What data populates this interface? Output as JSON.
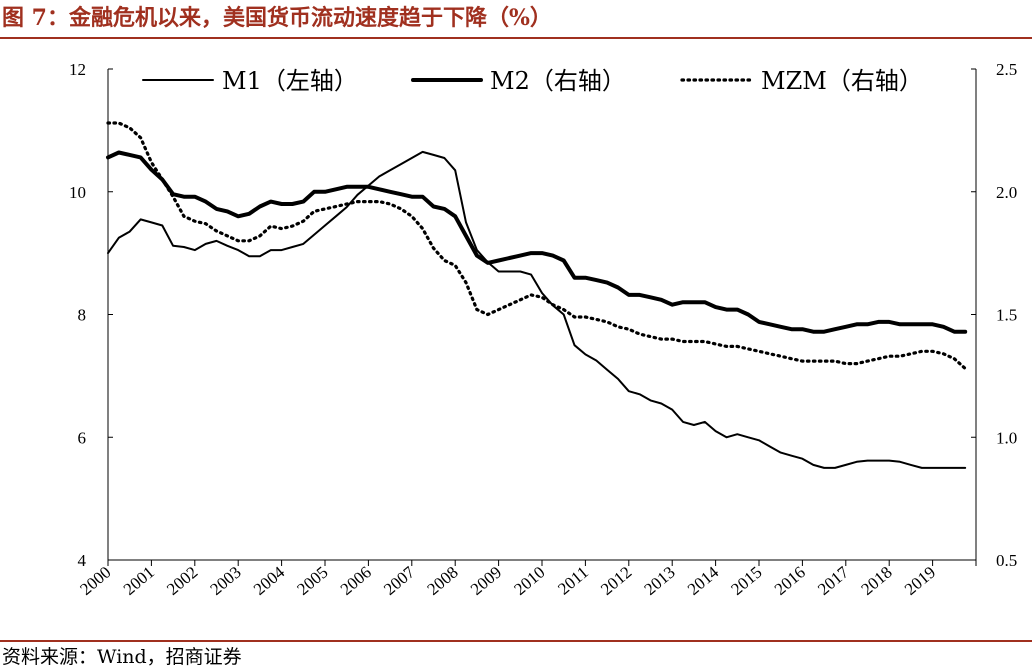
{
  "figure": {
    "title": "图 7：金融危机以来，美国货币流动速度趋于下降（%）",
    "source": "资料来源：Wind，招商证券"
  },
  "chart_data": {
    "type": "line",
    "x_range": [
      2000,
      2020
    ],
    "x_ticks": [
      "2000",
      "2001",
      "2002",
      "2003",
      "2004",
      "2005",
      "2006",
      "2007",
      "2008",
      "2009",
      "2010",
      "2011",
      "2012",
      "2013",
      "2014",
      "2015",
      "2016",
      "2017",
      "2018",
      "2019"
    ],
    "left_axis": {
      "ylim": [
        4,
        12
      ],
      "ticks": [
        "4",
        "6",
        "8",
        "10",
        "12"
      ]
    },
    "right_axis": {
      "ylim": [
        0.5,
        2.5
      ],
      "ticks": [
        "0.5",
        "1.0",
        "1.5",
        "2.0",
        "2.5"
      ]
    },
    "legend_placement": "top",
    "series": [
      {
        "name": "M1（左轴）",
        "axis": "left",
        "style": "thin",
        "color": "#000000",
        "x": [
          2000.0,
          2000.25,
          2000.5,
          2000.75,
          2001.0,
          2001.25,
          2001.5,
          2001.75,
          2002.0,
          2002.25,
          2002.5,
          2002.75,
          2003.0,
          2003.25,
          2003.5,
          2003.75,
          2004.0,
          2004.25,
          2004.5,
          2004.75,
          2005.0,
          2005.25,
          2005.5,
          2005.75,
          2006.0,
          2006.25,
          2006.5,
          2006.75,
          2007.0,
          2007.25,
          2007.5,
          2007.75,
          2008.0,
          2008.25,
          2008.5,
          2008.75,
          2009.0,
          2009.25,
          2009.5,
          2009.75,
          2010.0,
          2010.25,
          2010.5,
          2010.75,
          2011.0,
          2011.25,
          2011.5,
          2011.75,
          2012.0,
          2012.25,
          2012.5,
          2012.75,
          2013.0,
          2013.25,
          2013.5,
          2013.75,
          2014.0,
          2014.25,
          2014.5,
          2014.75,
          2015.0,
          2015.25,
          2015.5,
          2015.75,
          2016.0,
          2016.25,
          2016.5,
          2016.75,
          2017.0,
          2017.25,
          2017.5,
          2017.75,
          2018.0,
          2018.25,
          2018.5,
          2018.75,
          2019.0,
          2019.25,
          2019.5,
          2019.75
        ],
        "values": [
          9.0,
          9.25,
          9.35,
          9.55,
          9.5,
          9.45,
          9.12,
          9.1,
          9.05,
          9.15,
          9.2,
          9.12,
          9.05,
          8.95,
          8.95,
          9.05,
          9.05,
          9.1,
          9.15,
          9.3,
          9.45,
          9.6,
          9.75,
          9.95,
          10.1,
          10.25,
          10.35,
          10.45,
          10.55,
          10.65,
          10.6,
          10.55,
          10.35,
          9.5,
          9.05,
          8.85,
          8.7,
          8.7,
          8.7,
          8.65,
          8.35,
          8.15,
          8.0,
          7.5,
          7.35,
          7.25,
          7.1,
          6.95,
          6.75,
          6.7,
          6.6,
          6.55,
          6.45,
          6.25,
          6.2,
          6.25,
          6.1,
          6.0,
          6.05,
          6.0,
          5.95,
          5.85,
          5.75,
          5.7,
          5.65,
          5.55,
          5.5,
          5.5,
          5.55,
          5.6,
          5.62,
          5.62,
          5.62,
          5.6,
          5.55,
          5.5,
          5.5,
          5.5,
          5.5,
          5.5
        ]
      },
      {
        "name": "M2（右轴）",
        "axis": "right",
        "style": "thick",
        "color": "#000000",
        "x": [
          2000.0,
          2000.25,
          2000.5,
          2000.75,
          2001.0,
          2001.25,
          2001.5,
          2001.75,
          2002.0,
          2002.25,
          2002.5,
          2002.75,
          2003.0,
          2003.25,
          2003.5,
          2003.75,
          2004.0,
          2004.25,
          2004.5,
          2004.75,
          2005.0,
          2005.25,
          2005.5,
          2005.75,
          2006.0,
          2006.25,
          2006.5,
          2006.75,
          2007.0,
          2007.25,
          2007.5,
          2007.75,
          2008.0,
          2008.25,
          2008.5,
          2008.75,
          2009.0,
          2009.25,
          2009.5,
          2009.75,
          2010.0,
          2010.25,
          2010.5,
          2010.75,
          2011.0,
          2011.25,
          2011.5,
          2011.75,
          2012.0,
          2012.25,
          2012.5,
          2012.75,
          2013.0,
          2013.25,
          2013.5,
          2013.75,
          2014.0,
          2014.25,
          2014.5,
          2014.75,
          2015.0,
          2015.25,
          2015.5,
          2015.75,
          2016.0,
          2016.25,
          2016.5,
          2016.75,
          2017.0,
          2017.25,
          2017.5,
          2017.75,
          2018.0,
          2018.25,
          2018.5,
          2018.75,
          2019.0,
          2019.25,
          2019.5,
          2019.75
        ],
        "values": [
          2.14,
          2.16,
          2.15,
          2.14,
          2.09,
          2.05,
          1.99,
          1.98,
          1.98,
          1.96,
          1.93,
          1.92,
          1.9,
          1.91,
          1.94,
          1.96,
          1.95,
          1.95,
          1.96,
          2.0,
          2.0,
          2.01,
          2.02,
          2.02,
          2.02,
          2.01,
          2.0,
          1.99,
          1.98,
          1.98,
          1.94,
          1.93,
          1.9,
          1.82,
          1.74,
          1.71,
          1.72,
          1.73,
          1.74,
          1.75,
          1.75,
          1.74,
          1.72,
          1.65,
          1.65,
          1.64,
          1.63,
          1.61,
          1.58,
          1.58,
          1.57,
          1.56,
          1.54,
          1.55,
          1.55,
          1.55,
          1.53,
          1.52,
          1.52,
          1.5,
          1.47,
          1.46,
          1.45,
          1.44,
          1.44,
          1.43,
          1.43,
          1.44,
          1.45,
          1.46,
          1.46,
          1.47,
          1.47,
          1.46,
          1.46,
          1.46,
          1.46,
          1.45,
          1.43,
          1.43
        ]
      },
      {
        "name": "MZM（右轴）",
        "axis": "right",
        "style": "dotted",
        "color": "#000000",
        "x": [
          2000.0,
          2000.25,
          2000.5,
          2000.75,
          2001.0,
          2001.25,
          2001.5,
          2001.75,
          2002.0,
          2002.25,
          2002.5,
          2002.75,
          2003.0,
          2003.25,
          2003.5,
          2003.75,
          2004.0,
          2004.25,
          2004.5,
          2004.75,
          2005.0,
          2005.25,
          2005.5,
          2005.75,
          2006.0,
          2006.25,
          2006.5,
          2006.75,
          2007.0,
          2007.25,
          2007.5,
          2007.75,
          2008.0,
          2008.25,
          2008.5,
          2008.75,
          2009.0,
          2009.25,
          2009.5,
          2009.75,
          2010.0,
          2010.25,
          2010.5,
          2010.75,
          2011.0,
          2011.25,
          2011.5,
          2011.75,
          2012.0,
          2012.25,
          2012.5,
          2012.75,
          2013.0,
          2013.25,
          2013.5,
          2013.75,
          2014.0,
          2014.25,
          2014.5,
          2014.75,
          2015.0,
          2015.25,
          2015.5,
          2015.75,
          2016.0,
          2016.25,
          2016.5,
          2016.75,
          2017.0,
          2017.25,
          2017.5,
          2017.75,
          2018.0,
          2018.25,
          2018.5,
          2018.75,
          2019.0,
          2019.25,
          2019.5,
          2019.75
        ],
        "values": [
          2.28,
          2.28,
          2.26,
          2.22,
          2.12,
          2.05,
          1.98,
          1.9,
          1.88,
          1.87,
          1.84,
          1.82,
          1.8,
          1.8,
          1.82,
          1.86,
          1.85,
          1.86,
          1.88,
          1.92,
          1.93,
          1.94,
          1.95,
          1.96,
          1.96,
          1.96,
          1.95,
          1.93,
          1.9,
          1.85,
          1.77,
          1.72,
          1.7,
          1.63,
          1.52,
          1.5,
          1.52,
          1.54,
          1.56,
          1.58,
          1.57,
          1.54,
          1.52,
          1.49,
          1.49,
          1.48,
          1.47,
          1.45,
          1.44,
          1.42,
          1.41,
          1.4,
          1.4,
          1.39,
          1.39,
          1.39,
          1.38,
          1.37,
          1.37,
          1.36,
          1.35,
          1.34,
          1.33,
          1.32,
          1.31,
          1.31,
          1.31,
          1.31,
          1.3,
          1.3,
          1.31,
          1.32,
          1.33,
          1.33,
          1.34,
          1.35,
          1.35,
          1.34,
          1.32,
          1.28
        ]
      }
    ]
  }
}
